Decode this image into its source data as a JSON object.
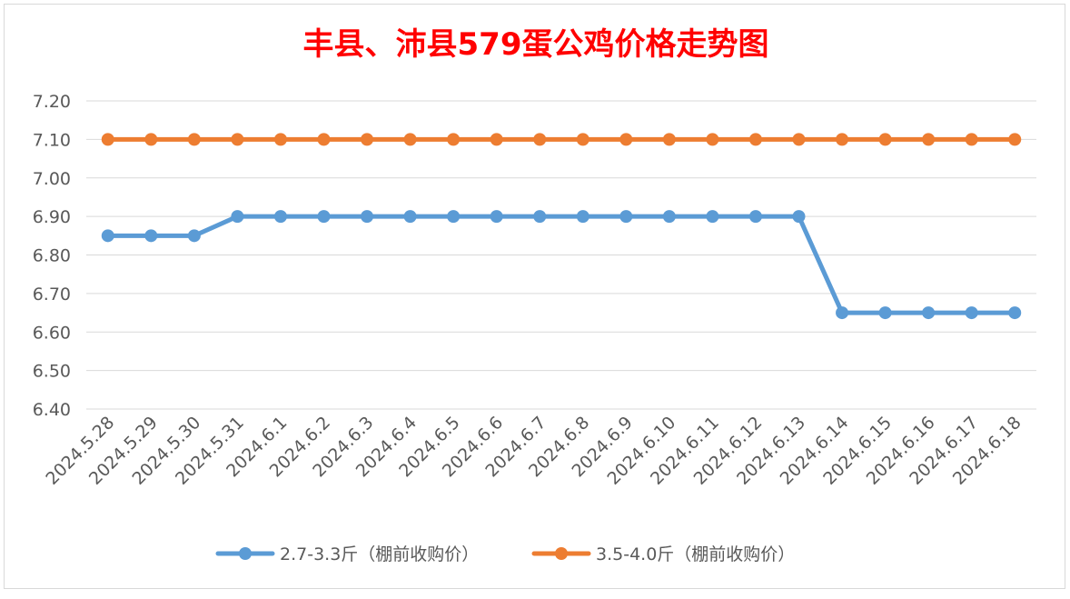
{
  "chart_data": {
    "type": "line",
    "title": "丰县、沛县579蛋公鸡价格走势图",
    "title_color": "#FF0000",
    "categories": [
      "2024.5.28",
      "2024.5.29",
      "2024.5.30",
      "2024.5.31",
      "2024.6.1",
      "2024.6.2",
      "2024.6.3",
      "2024.6.4",
      "2024.6.5",
      "2024.6.6",
      "2024.6.7",
      "2024.6.8",
      "2024.6.9",
      "2024.6.10",
      "2024.6.11",
      "2024.6.12",
      "2024.6.13",
      "2024.6.14",
      "2024.6.15",
      "2024.6.16",
      "2024.6.17",
      "2024.6.18"
    ],
    "series": [
      {
        "name": "2.7-3.3斤（棚前收购价）",
        "color": "#5B9BD5",
        "values": [
          6.85,
          6.85,
          6.85,
          6.9,
          6.9,
          6.9,
          6.9,
          6.9,
          6.9,
          6.9,
          6.9,
          6.9,
          6.9,
          6.9,
          6.9,
          6.9,
          6.9,
          6.65,
          6.65,
          6.65,
          6.65,
          6.65
        ]
      },
      {
        "name": "3.5-4.0斤（棚前收购价）",
        "color": "#ED7D31",
        "values": [
          7.1,
          7.1,
          7.1,
          7.1,
          7.1,
          7.1,
          7.1,
          7.1,
          7.1,
          7.1,
          7.1,
          7.1,
          7.1,
          7.1,
          7.1,
          7.1,
          7.1,
          7.1,
          7.1,
          7.1,
          7.1,
          7.1
        ]
      }
    ],
    "xlabel": "",
    "ylabel": "",
    "ylim": [
      6.4,
      7.2
    ],
    "yticks": [
      "6.40",
      "6.50",
      "6.60",
      "6.70",
      "6.80",
      "6.90",
      "7.00",
      "7.10",
      "7.20"
    ],
    "grid": "horizontal",
    "legend_position": "bottom"
  }
}
